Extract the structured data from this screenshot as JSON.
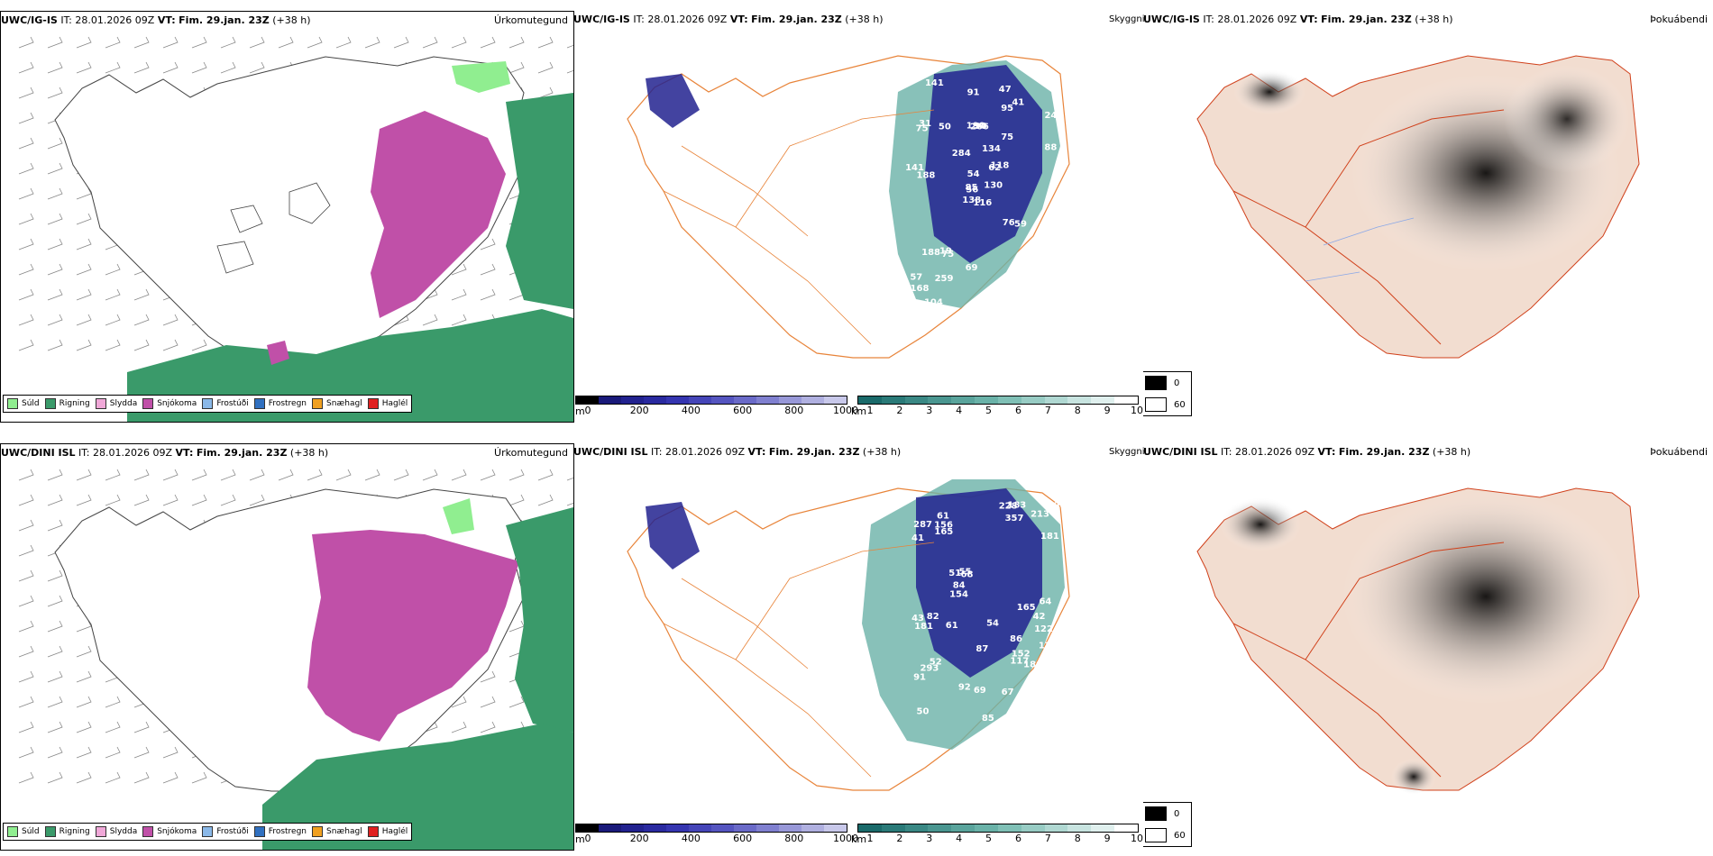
{
  "rows": [
    {
      "model": "UWC/IG-IS",
      "it_label": "IT:",
      "it_value": "28.01.2026 09Z",
      "vt_label": "VT:",
      "vt_value": "Fim. 29.jan. 23Z",
      "lead": "(+38 h)",
      "panel1_title": "Úrkomutegund",
      "panel2_title": "Skyggni",
      "panel3_title": "Þokuábendi"
    },
    {
      "model": "UWC/DINI ISL",
      "it_label": "IT:",
      "it_value": "28.01.2026 09Z",
      "vt_label": "VT:",
      "vt_value": "Fim. 29.jan. 23Z",
      "lead": "(+38 h)",
      "panel1_title": "Úrkomutegund",
      "panel2_title": "Skyggni",
      "panel3_title": "Þokuábendi"
    }
  ],
  "precip_legend": [
    {
      "label": "Súld",
      "color": "#90ee90"
    },
    {
      "label": "Rigning",
      "color": "#3a9a6a"
    },
    {
      "label": "Slydda",
      "color": "#f0a8d8"
    },
    {
      "label": "Snjókoma",
      "color": "#c050a8"
    },
    {
      "label": "Frostúði",
      "color": "#8ab8e8"
    },
    {
      "label": "Frostregn",
      "color": "#3070c0"
    },
    {
      "label": "Snæhagl",
      "color": "#f0a020"
    },
    {
      "label": "Haglél",
      "color": "#e02020"
    }
  ],
  "ceiling_bar": {
    "unit": "m",
    "ticks": [
      "0",
      "200",
      "400",
      "600",
      "800",
      "1000"
    ],
    "colors": [
      "#000000",
      "#1a1a7a",
      "#22228f",
      "#2a2aa0",
      "#3535b0",
      "#4545b8",
      "#5555c0",
      "#6a6ac8",
      "#8080d0",
      "#9898d8",
      "#b0b0e0",
      "#c8c8ea"
    ]
  },
  "visibility_bar": {
    "unit": "km",
    "ticks": [
      "1",
      "2",
      "3",
      "4",
      "5",
      "6",
      "7",
      "8",
      "9",
      "10"
    ],
    "colors": [
      "#1a6a6a",
      "#2a7a78",
      "#3a8884",
      "#4a9690",
      "#5aa49c",
      "#6ab2a8",
      "#80c0b6",
      "#98ccc4",
      "#b0d8d2",
      "#c8e4e0",
      "#e0f0ee",
      "#ffffff"
    ]
  },
  "fog_legend": [
    {
      "value": "0",
      "color": "#000000"
    },
    {
      "value": "60",
      "color": "#ffffff"
    }
  ],
  "labels_row1": [
    "116",
    "75",
    "56",
    "57",
    "62",
    "75",
    "47",
    "90",
    "95",
    "130",
    "141",
    "106",
    "188",
    "240",
    "138",
    "75",
    "104",
    "190",
    "134",
    "188",
    "284",
    "168",
    "259",
    "266",
    "118",
    "59",
    "31",
    "91",
    "141",
    "76",
    "88",
    "85",
    "69",
    "54",
    "50",
    "41",
    "19",
    "277",
    "72"
  ],
  "labels_row2": [
    "86",
    "122",
    "50",
    "61",
    "68",
    "95",
    "91",
    "357",
    "51",
    "101",
    "41",
    "43",
    "287",
    "256",
    "92",
    "64",
    "87",
    "54",
    "55",
    "52",
    "196",
    "213",
    "154",
    "130",
    "228",
    "156",
    "152",
    "181",
    "165",
    "165",
    "85",
    "67",
    "84",
    "61",
    "42",
    "180",
    "117",
    "82",
    "69",
    "293",
    "181",
    "183",
    "36"
  ],
  "colors": {
    "rain": "#3a9a6a",
    "snow": "#c050a8",
    "drizzle": "#90ee90",
    "ceiling_dark": "#22228f",
    "vis_teal": "#6ab2a8",
    "roads_orange": "#e8843a",
    "roads_red": "#d0401a",
    "land_beige": "#f2ddd0",
    "rivers_blue": "#8aa8e8"
  }
}
